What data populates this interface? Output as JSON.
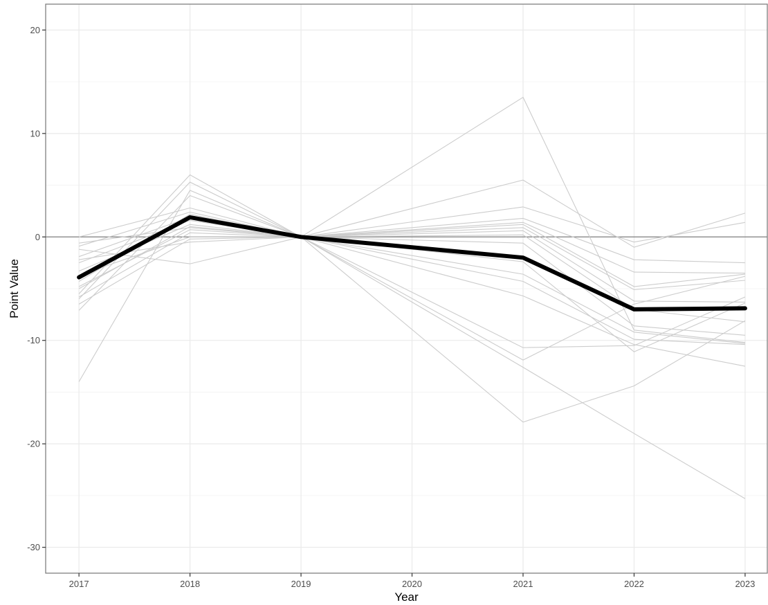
{
  "chart_data": {
    "type": "line",
    "title": "",
    "xlabel": "Year",
    "ylabel": "Point Value",
    "x": [
      2017,
      2018,
      2019,
      2020,
      2021,
      2022,
      2023
    ],
    "x_tick_labels": [
      "2017",
      "2018",
      "2019",
      "2020",
      "2021",
      "2022",
      "2023"
    ],
    "y_ticks": [
      20,
      10,
      0,
      -10,
      -20,
      -30
    ],
    "y_tick_labels": [
      "20",
      "10",
      "0",
      "-10",
      "-20",
      "-30"
    ],
    "ylim": [
      -32.5,
      22.5
    ],
    "xlim": [
      2016.7,
      2023.2
    ],
    "grid": true,
    "reference_line_y": 0,
    "colors": {
      "background_series": "#cccccc",
      "highlight_series": "#000000",
      "reference_line": "#7f7f7f",
      "grid": "#ebebeb"
    },
    "highlight_series": {
      "x": [
        2017,
        2018,
        2019,
        2021,
        2022,
        2023
      ],
      "values": [
        -3.9,
        1.9,
        0,
        -2.0,
        -7.0,
        -6.9
      ]
    },
    "series": [
      {
        "x": [
          2017,
          2018,
          2019,
          2021,
          2022,
          2023
        ],
        "values": [
          -14.0,
          4.5,
          0,
          13.5,
          -9.0,
          -10.2
        ]
      },
      {
        "x": [
          2017,
          2018,
          2019,
          2021,
          2022,
          2023
        ],
        "values": [
          -5.5,
          6.0,
          0,
          5.5,
          -1.0,
          2.3
        ]
      },
      {
        "x": [
          2017,
          2018,
          2019,
          2021,
          2022,
          2023
        ],
        "values": [
          -6.0,
          5.3,
          0,
          2.9,
          -0.5,
          1.4
        ]
      },
      {
        "x": [
          2017,
          2018,
          2019,
          2021,
          2022,
          2023
        ],
        "values": [
          -7.1,
          4.0,
          0,
          1.8,
          -2.2,
          -2.5
        ]
      },
      {
        "x": [
          2017,
          2018,
          2019,
          2021,
          2022,
          2023
        ],
        "values": [
          0.0,
          2.8,
          0,
          1.4,
          -3.4,
          -3.5
        ]
      },
      {
        "x": [
          2017,
          2018,
          2019,
          2021,
          2022,
          2023
        ],
        "values": [
          -0.9,
          2.4,
          0,
          1.2,
          -4.8,
          -3.6
        ]
      },
      {
        "x": [
          2017,
          2018,
          2019,
          2021,
          2022,
          2023
        ],
        "values": [
          -1.9,
          1.9,
          0,
          0.9,
          -5.1,
          -4.2
        ]
      },
      {
        "x": [
          2017,
          2018,
          2019,
          2021,
          2022,
          2023
        ],
        "values": [
          -2.5,
          1.6,
          0,
          0.6,
          -6.2,
          -6.3
        ]
      },
      {
        "x": [
          2017,
          2018,
          2019,
          2021,
          2022,
          2023
        ],
        "values": [
          -3.3,
          1.2,
          0,
          0.2,
          -7.0,
          -8.2
        ]
      },
      {
        "x": [
          2017,
          2018,
          2019,
          2021,
          2022,
          2023
        ],
        "values": [
          -4.8,
          0.7,
          0,
          -0.6,
          -8.6,
          -9.5
        ]
      },
      {
        "x": [
          2017,
          2018,
          2019,
          2021,
          2022,
          2023
        ],
        "values": [
          -5.8,
          0.4,
          0,
          -3.6,
          -9.2,
          -10.3
        ]
      },
      {
        "x": [
          2017,
          2018,
          2019,
          2021,
          2022,
          2023
        ],
        "values": [
          -6.5,
          -0.2,
          0,
          -4.3,
          -9.9,
          -10.4
        ]
      },
      {
        "x": [
          2017,
          2018,
          2019,
          2021,
          2022,
          2023
        ],
        "values": [
          -2.2,
          -0.5,
          0,
          -5.7,
          -10.4,
          -12.5
        ]
      },
      {
        "x": [
          2017,
          2018,
          2019,
          2021,
          2022,
          2023
        ],
        "values": [
          -1.2,
          -2.6,
          0,
          -10.7,
          -10.5,
          -5.8
        ]
      },
      {
        "x": [
          2017,
          2018,
          2019,
          2021,
          2022,
          2023
        ],
        "values": [
          -3.7,
          0.0,
          0,
          -11.9,
          -6.5,
          -3.8
        ]
      },
      {
        "x": [
          2017,
          2018,
          2019,
          2021,
          2022,
          2023
        ],
        "values": [
          -4.3,
          2.2,
          0,
          -17.9,
          -14.4,
          -8.1
        ]
      },
      {
        "x": [
          2017,
          2018,
          2019,
          2021,
          2022,
          2023
        ],
        "values": [
          -0.6,
          0.9,
          0,
          -12.6,
          -19.0,
          -25.3
        ]
      },
      {
        "x": [
          2017,
          2018,
          2019,
          2021,
          2022,
          2023
        ],
        "values": [
          -5.0,
          1.0,
          0,
          -2.4,
          -11.1,
          -6.4
        ]
      }
    ]
  }
}
